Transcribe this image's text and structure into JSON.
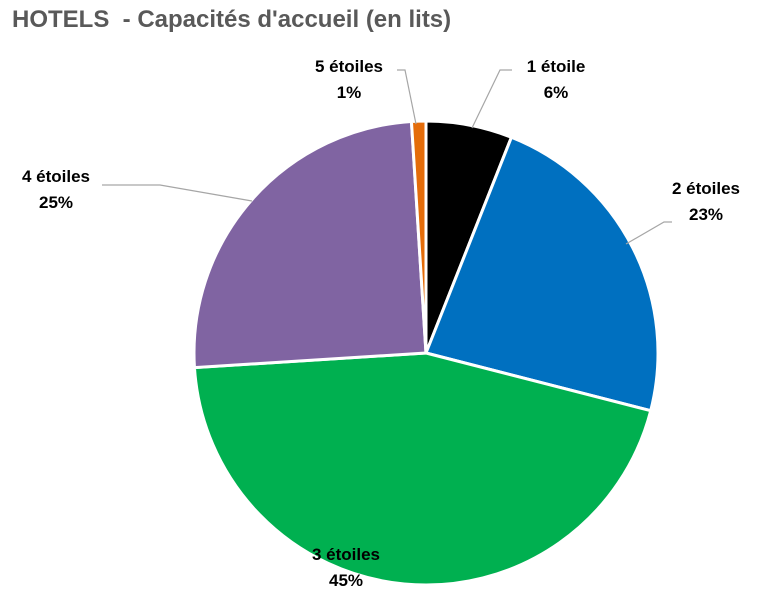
{
  "chart_data": {
    "type": "pie",
    "title": "HOTELS  - Capacités d'accueil (en lits)",
    "slices": [
      {
        "label": "1 étoile",
        "value": 6,
        "value_label": "6%",
        "color": "#000000"
      },
      {
        "label": "2 étoiles",
        "value": 23,
        "value_label": "23%",
        "color": "#0070c0"
      },
      {
        "label": "3 étoiles",
        "value": 45,
        "value_label": "45%",
        "color": "#00b050"
      },
      {
        "label": "4 étoiles",
        "value": 25,
        "value_label": "25%",
        "color": "#8064a2"
      },
      {
        "label": "5 étoiles",
        "value": 1,
        "value_label": "1%",
        "color": "#e46c0a"
      }
    ],
    "start": "12 o'clock",
    "direction": "clockwise",
    "legend": "none",
    "data_labels": "outside with leader lines"
  }
}
